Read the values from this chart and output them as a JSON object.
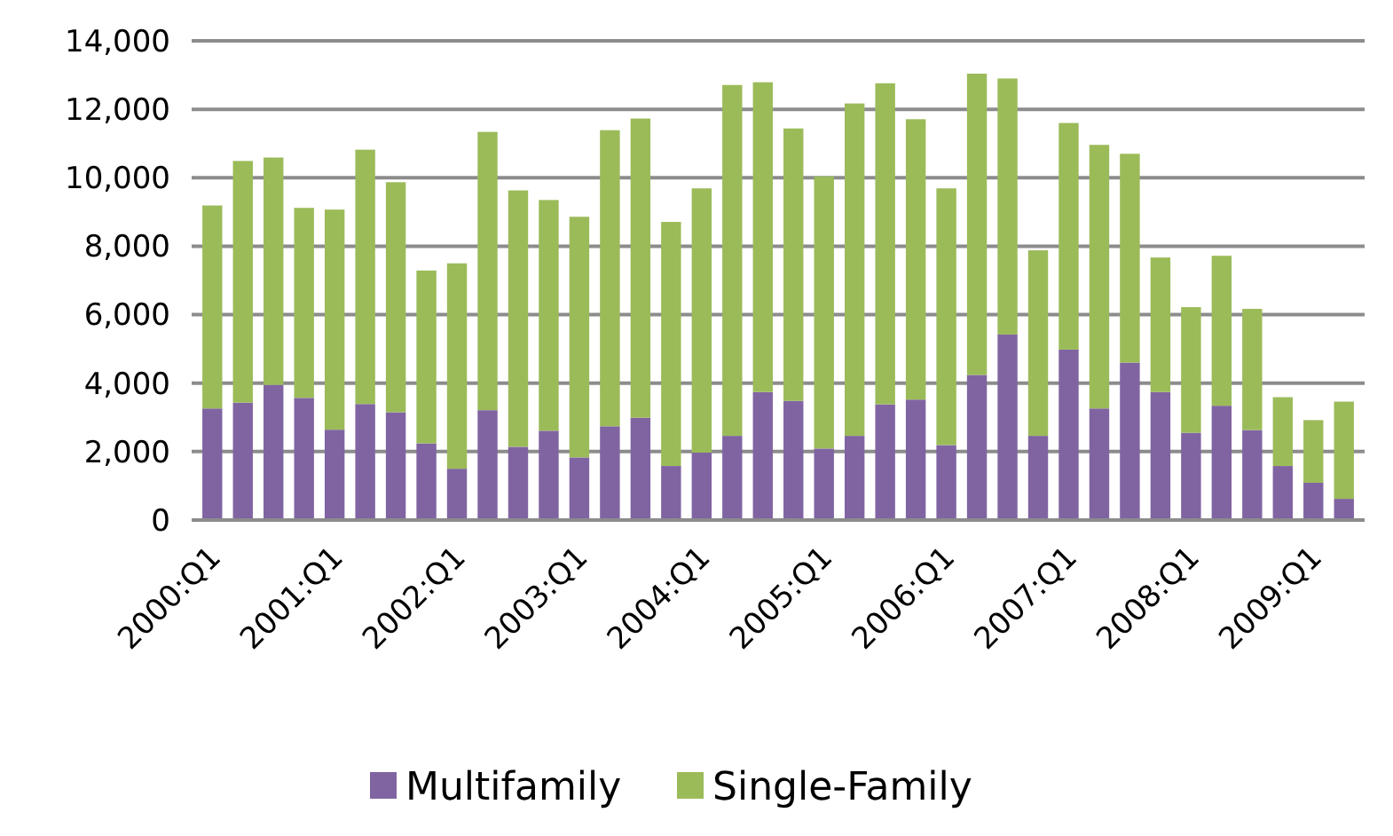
{
  "chart_data": {
    "type": "bar",
    "stacked": true,
    "categories": [
      "2000:Q1",
      null,
      null,
      null,
      "2001:Q1",
      null,
      null,
      null,
      "2002:Q1",
      null,
      null,
      null,
      "2003:Q1",
      null,
      null,
      null,
      "2004:Q1",
      null,
      null,
      null,
      "2005:Q1",
      null,
      null,
      null,
      "2006:Q1",
      null,
      null,
      null,
      "2007:Q1",
      null,
      null,
      null,
      "2008:Q1",
      null,
      null,
      null,
      "2009:Q1",
      null
    ],
    "series": [
      {
        "name": "Multifamily",
        "color": "#8064a2",
        "values": [
          3260,
          3430,
          3950,
          3570,
          2640,
          3390,
          3150,
          2240,
          1500,
          3210,
          2140,
          2610,
          1830,
          2740,
          2990,
          1580,
          1970,
          2460,
          3740,
          3480,
          2090,
          2460,
          3380,
          3520,
          2190,
          4240,
          5420,
          2460,
          4980,
          3260,
          4600,
          3740,
          2550,
          3340,
          2630,
          1580,
          1090,
          620
        ]
      },
      {
        "name": "Single-Family",
        "color": "#9bbb59",
        "values": [
          5930,
          7060,
          6640,
          5550,
          6430,
          7430,
          6720,
          5050,
          6000,
          8130,
          7490,
          6740,
          7030,
          8650,
          8740,
          7130,
          7720,
          10250,
          9050,
          7960,
          7950,
          9710,
          9380,
          8190,
          7500,
          8800,
          7480,
          5420,
          6620,
          7700,
          6100,
          3930,
          3670,
          4380,
          3540,
          2010,
          1830,
          2840
        ]
      }
    ],
    "ylim": [
      0,
      14000
    ],
    "yticks": [
      {
        "value": 0,
        "label": "0"
      },
      {
        "value": 2000,
        "label": "2,000"
      },
      {
        "value": 4000,
        "label": "4,000"
      },
      {
        "value": 6000,
        "label": "6,000"
      },
      {
        "value": 8000,
        "label": "8,000"
      },
      {
        "value": 10000,
        "label": "10,000"
      },
      {
        "value": 12000,
        "label": "12,000"
      },
      {
        "value": 14000,
        "label": "14,000"
      }
    ],
    "grid": "y",
    "legend": "bottom"
  }
}
